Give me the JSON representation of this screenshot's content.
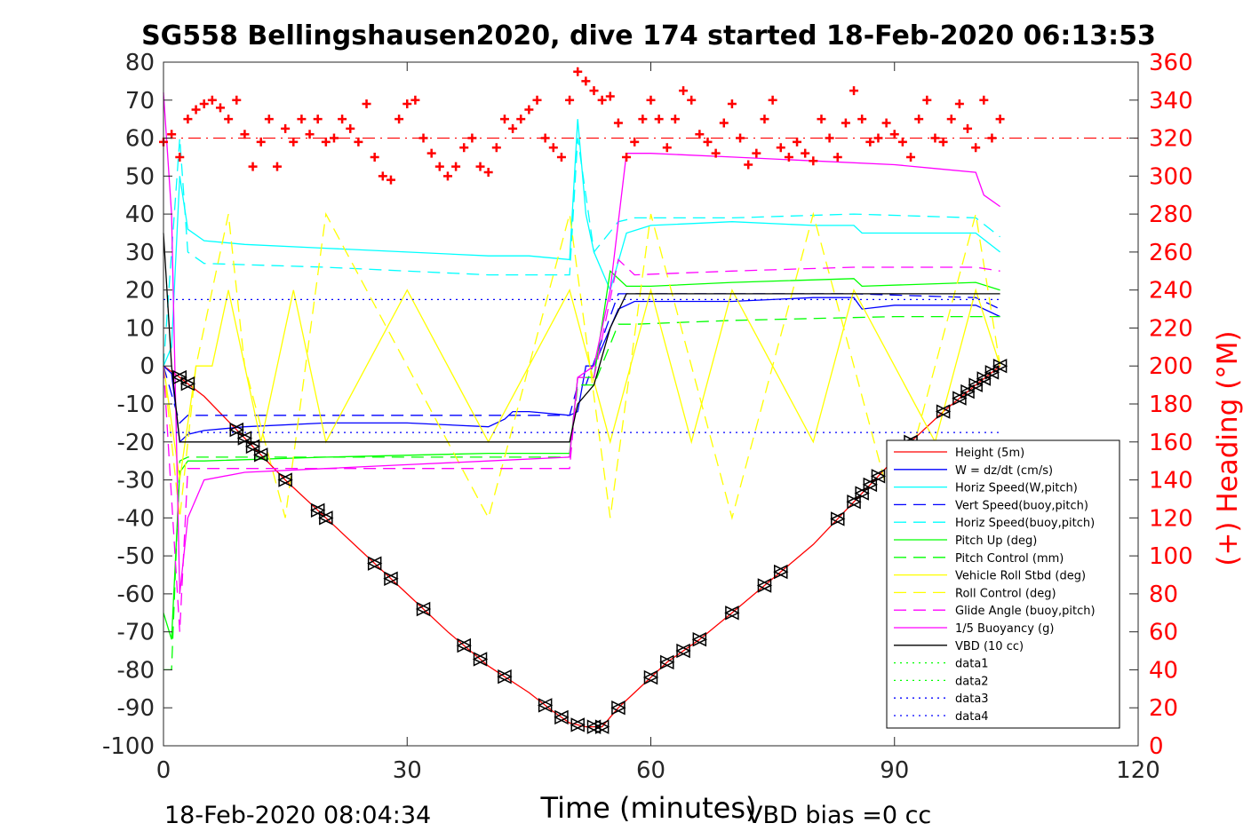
{
  "chart_data": {
    "type": "line",
    "title": "SG558 Bellingshausen2020, dive 174 started 18-Feb-2020 06:13:53",
    "xlabel": "Time (minutes)",
    "ylabel": "",
    "y2label": "(+) Heading (°M)",
    "xlim": [
      0,
      120
    ],
    "ylim": [
      -100,
      80
    ],
    "y2lim": [
      0,
      360
    ],
    "xticks": [
      0,
      30,
      60,
      90,
      120
    ],
    "yticks": [
      80,
      70,
      60,
      50,
      40,
      30,
      20,
      10,
      0,
      -10,
      -20,
      -30,
      -40,
      -50,
      -60,
      -70,
      -80,
      -90,
      -100
    ],
    "y2ticks": [
      360,
      340,
      320,
      300,
      280,
      260,
      240,
      220,
      200,
      180,
      160,
      140,
      120,
      100,
      80,
      60,
      40,
      20,
      0
    ],
    "grid": false,
    "legend_position": "lower-right",
    "footer_left": "18-Feb-2020 08:04:34",
    "footer_right": "VBD bias =0 cc",
    "colors": {
      "axis": "#262626",
      "heading": "#ff0000",
      "height": "#ff0000",
      "w": "#0000ff",
      "horiz_speed": "#00ffff",
      "vert_speed_buoy": "#0000ff",
      "pitch": "#00ff00",
      "roll": "#ffff00",
      "glide": "#ff00ff",
      "buoyancy": "#ff00ff",
      "vbd": "#000000",
      "data": "#0000ff"
    },
    "series": [
      {
        "name": "Height (5m)",
        "color": "#ff0000",
        "style": "solid",
        "x": [
          0,
          2,
          5,
          10,
          15,
          20,
          25,
          30,
          35,
          40,
          45,
          48,
          50,
          52,
          54,
          56,
          58,
          62,
          66,
          70,
          75,
          80,
          84,
          88,
          92,
          96,
          100,
          103
        ],
        "y": [
          0,
          -3,
          -8,
          -19,
          -30,
          -40,
          -50,
          -60,
          -70,
          -79,
          -86,
          -91,
          -94,
          -95,
          -95,
          -90,
          -86,
          -78,
          -72,
          -65,
          -56,
          -47,
          -38,
          -29,
          -20,
          -12,
          -5,
          0
        ]
      },
      {
        "name": "W = dz/dt (cm/s)",
        "color": "#0000ff",
        "style": "solid",
        "x": [
          0,
          1,
          2,
          3,
          5,
          10,
          20,
          30,
          40,
          42,
          43,
          45,
          50,
          51,
          52,
          53,
          54,
          55,
          56,
          58,
          60,
          70,
          80,
          85,
          86,
          90,
          100,
          103
        ],
        "y": [
          0,
          -2,
          -20,
          -18,
          -17,
          -16,
          -15,
          -15,
          -16,
          -14,
          -12,
          -12,
          -13,
          -12,
          0,
          0,
          5,
          10,
          15,
          17,
          17,
          17,
          18,
          18,
          15,
          16,
          16,
          13
        ]
      },
      {
        "name": "Horiz Speed(W,pitch)",
        "color": "#00ffff",
        "style": "solid",
        "x": [
          0,
          1,
          2,
          3,
          5,
          10,
          20,
          30,
          40,
          45,
          50,
          51,
          52,
          53,
          55,
          57,
          60,
          70,
          80,
          85,
          86,
          90,
          100,
          103
        ],
        "y": [
          0,
          5,
          50,
          36,
          33,
          32,
          31,
          30,
          29,
          29,
          28,
          65,
          40,
          30,
          20,
          35,
          37,
          38,
          37,
          37,
          35,
          35,
          35,
          30
        ]
      },
      {
        "name": "Vert Speed(buoy,pitch)",
        "color": "#0000ff",
        "style": "dashed",
        "x": [
          0,
          2,
          3,
          5,
          20,
          40,
          50,
          51,
          52,
          56,
          58,
          70,
          85,
          100,
          103
        ],
        "y": [
          0,
          -15,
          -13,
          -13,
          -13,
          -13,
          -13,
          -5,
          -5,
          19,
          19,
          19,
          19,
          18,
          15
        ]
      },
      {
        "name": "Horiz Speed(buoy,pitch)",
        "color": "#00ffff",
        "style": "dashed",
        "x": [
          0,
          2,
          3,
          5,
          20,
          40,
          50,
          51,
          53,
          56,
          58,
          70,
          85,
          100,
          103
        ],
        "y": [
          0,
          60,
          30,
          27,
          26,
          24,
          24,
          60,
          30,
          38,
          39,
          39,
          40,
          39,
          34
        ]
      },
      {
        "name": "Pitch Up (deg)",
        "color": "#00ff00",
        "style": "solid",
        "x": [
          0,
          1,
          2,
          3,
          5,
          20,
          40,
          50,
          51,
          53,
          55,
          57,
          60,
          70,
          85,
          86,
          100,
          103
        ],
        "y": [
          -65,
          -72,
          -28,
          -25,
          -25,
          -24,
          -23,
          -23,
          -3,
          -3,
          25,
          21,
          21,
          22,
          23,
          21,
          22,
          20
        ]
      },
      {
        "name": "Pitch Control (mm)",
        "color": "#00ff00",
        "style": "dashed",
        "x": [
          0,
          1,
          2,
          3,
          20,
          40,
          50,
          51,
          53,
          56,
          58,
          70,
          90,
          100,
          103
        ],
        "y": [
          -80,
          -80,
          -25,
          -24,
          -24,
          -24,
          -24,
          -5,
          -5,
          11,
          11,
          12,
          13,
          13,
          13
        ]
      },
      {
        "name": "Vehicle Roll Stbd (deg)",
        "color": "#ffff00",
        "style": "solid",
        "x": [
          0,
          2,
          4,
          6,
          8,
          10,
          12,
          14,
          16,
          18,
          20,
          25,
          30,
          35,
          40,
          45,
          50,
          55,
          60,
          65,
          70,
          75,
          80,
          85,
          90,
          95,
          100,
          103
        ],
        "y": [
          0,
          -30,
          0,
          0,
          20,
          0,
          -20,
          0,
          20,
          0,
          -20,
          0,
          20,
          0,
          -20,
          0,
          20,
          -20,
          20,
          -20,
          20,
          0,
          -20,
          20,
          0,
          -20,
          20,
          0
        ]
      },
      {
        "name": "Roll Control (deg)",
        "color": "#ffff00",
        "style": "dashed",
        "x": [
          0,
          2,
          4,
          8,
          10,
          15,
          20,
          30,
          40,
          50,
          55,
          60,
          70,
          80,
          90,
          100,
          103
        ],
        "y": [
          0,
          -40,
          0,
          40,
          0,
          -40,
          40,
          0,
          -40,
          40,
          -40,
          40,
          -40,
          40,
          -40,
          40,
          0
        ]
      },
      {
        "name": "Glide Angle (buoy,pitch)",
        "color": "#ff00ff",
        "style": "dashed",
        "x": [
          0,
          2,
          3,
          5,
          20,
          40,
          50,
          51,
          53,
          56,
          58,
          70,
          85,
          100,
          103
        ],
        "y": [
          0,
          -70,
          -27,
          -27,
          -27,
          -27,
          -27,
          -3,
          -3,
          28,
          24,
          25,
          26,
          26,
          25
        ]
      },
      {
        "name": "1/5 Buoyancy (g)",
        "color": "#ff00ff",
        "style": "solid",
        "x": [
          0,
          1,
          2,
          3,
          5,
          10,
          20,
          30,
          40,
          50,
          51,
          53,
          55,
          57,
          60,
          70,
          80,
          90,
          95,
          100,
          101,
          103
        ],
        "y": [
          72,
          40,
          -60,
          -40,
          -30,
          -28,
          -27,
          -26,
          -25,
          -24,
          -3,
          0,
          20,
          56,
          56,
          55,
          54,
          53,
          52,
          51,
          45,
          42
        ]
      },
      {
        "name": "VBD (10 cc)",
        "color": "#000000",
        "style": "solid",
        "x": [
          0,
          1,
          2,
          3,
          20,
          40,
          50,
          51,
          53,
          55,
          57,
          60,
          80,
          103
        ],
        "y": [
          35,
          0,
          -20,
          -20,
          -20,
          -20,
          -20,
          -10,
          -5,
          10,
          19,
          19,
          19,
          19
        ]
      },
      {
        "name": "data1",
        "color": "#00ff00",
        "style": "dotted",
        "x": [],
        "y": []
      },
      {
        "name": "data2",
        "color": "#00ff00",
        "style": "dotted",
        "x": [],
        "y": []
      },
      {
        "name": "data3",
        "color": "#0000ff",
        "style": "dotted",
        "x": [
          0,
          103
        ],
        "y": [
          17.5,
          17.5
        ]
      },
      {
        "name": "data4",
        "color": "#0000ff",
        "style": "dotted",
        "x": [
          0,
          103
        ],
        "y": [
          -17.5,
          -17.5
        ]
      }
    ],
    "reference_line": {
      "axis": "y2",
      "value": 320,
      "color": "#ff0000",
      "style": "dashdot"
    },
    "heading_series": {
      "axis": "y2",
      "color": "#ff0000",
      "marker": "+",
      "x": [
        0,
        1,
        2,
        3,
        4,
        5,
        6,
        7,
        8,
        9,
        10,
        11,
        12,
        13,
        14,
        15,
        16,
        17,
        18,
        19,
        20,
        21,
        22,
        23,
        24,
        25,
        26,
        27,
        28,
        29,
        30,
        31,
        32,
        33,
        34,
        35,
        36,
        37,
        38,
        39,
        40,
        41,
        42,
        43,
        44,
        45,
        46,
        47,
        48,
        49,
        50,
        51,
        52,
        53,
        54,
        55,
        56,
        57,
        58,
        59,
        60,
        61,
        62,
        63,
        64,
        65,
        66,
        67,
        68,
        69,
        70,
        71,
        72,
        73,
        74,
        75,
        76,
        77,
        78,
        79,
        80,
        81,
        82,
        83,
        84,
        85,
        86,
        87,
        88,
        89,
        90,
        91,
        92,
        93,
        94,
        95,
        96,
        97,
        98,
        99,
        100,
        101,
        102,
        103
      ],
      "y": [
        318,
        322,
        310,
        330,
        335,
        338,
        340,
        336,
        330,
        340,
        322,
        305,
        318,
        330,
        305,
        325,
        318,
        330,
        322,
        330,
        318,
        320,
        330,
        325,
        318,
        338,
        310,
        300,
        298,
        330,
        338,
        340,
        320,
        312,
        305,
        300,
        305,
        315,
        320,
        305,
        302,
        315,
        330,
        325,
        330,
        335,
        340,
        320,
        315,
        310,
        340,
        355,
        350,
        345,
        340,
        342,
        328,
        310,
        318,
        330,
        340,
        330,
        315,
        330,
        345,
        340,
        322,
        318,
        312,
        328,
        338,
        320,
        306,
        312,
        330,
        340,
        315,
        310,
        318,
        312,
        308,
        330,
        320,
        310,
        328,
        345,
        330,
        318,
        320,
        328,
        322,
        318,
        310,
        330,
        340,
        320,
        318,
        330,
        338,
        325,
        315,
        340,
        320,
        330
      ]
    },
    "triangle_markers": {
      "on": "Height (5m)",
      "x": [
        2,
        3,
        9,
        10,
        11,
        12,
        15,
        19,
        20,
        26,
        28,
        32,
        37,
        39,
        42,
        47,
        49,
        51,
        53,
        54,
        56,
        60,
        62,
        64,
        66,
        70,
        74,
        76,
        83,
        85,
        86,
        87,
        88,
        92,
        96,
        98,
        99,
        100,
        101,
        102,
        103
      ]
    }
  }
}
